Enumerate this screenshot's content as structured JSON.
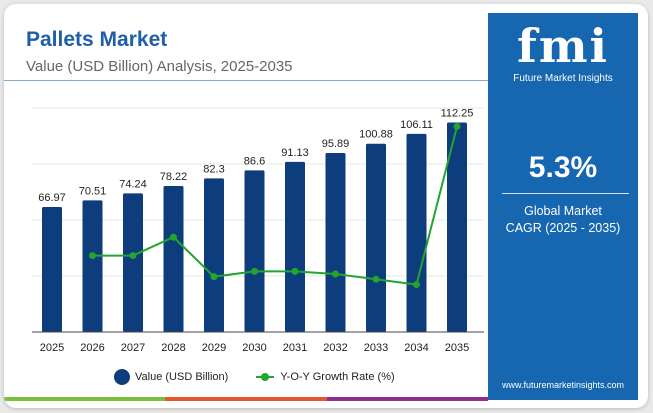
{
  "header": {
    "title": "Pallets Market",
    "subtitle": "Value (USD Billion) Analysis, 2025-2035"
  },
  "panel": {
    "logo": "fmi",
    "logo_sub": "Future Market Insights",
    "cagr": "5.3%",
    "cagr_label_1": "Global Market",
    "cagr_label_2": "CAGR (2025 - 2035)",
    "website": "www.futuremarketinsights.com"
  },
  "colors": {
    "bar": "#0e3d7e",
    "line": "#22a52e",
    "panel": "#1666b0",
    "stripe": [
      "#7cbf3c",
      "#e4572e",
      "#8e2f8f"
    ]
  },
  "chart_data": {
    "type": "bar+line",
    "categories": [
      "2025",
      "2026",
      "2027",
      "2028",
      "2029",
      "2030",
      "2031",
      "2032",
      "2033",
      "2034",
      "2035"
    ],
    "series": [
      {
        "name": "Value (USD Billion)",
        "type": "bar",
        "values": [
          66.97,
          70.51,
          74.24,
          78.22,
          82.3,
          86.6,
          91.13,
          95.89,
          100.88,
          106.11,
          112.25
        ]
      },
      {
        "name": "Y-O-Y Growth Rate (%)",
        "type": "line",
        "values": [
          null,
          5.29,
          5.29,
          5.36,
          5.21,
          5.23,
          5.23,
          5.22,
          5.2,
          5.18,
          5.78
        ]
      }
    ],
    "ylim": [
      0,
      120
    ],
    "y2lim": [
      5.0,
      5.85
    ],
    "grid": true,
    "legend": "bottom"
  }
}
